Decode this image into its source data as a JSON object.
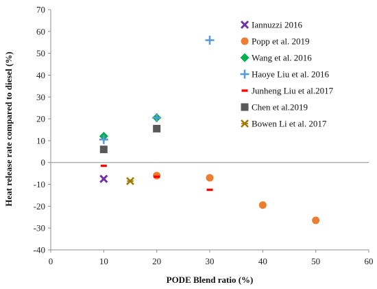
{
  "chart_data": {
    "type": "scatter",
    "title": "",
    "xlabel": "PODE Blend ratio (%)",
    "ylabel": "Heat release rate compared to diesel (%)",
    "xlim": [
      0,
      60
    ],
    "ylim": [
      -40,
      70
    ],
    "xticks": [
      0,
      10,
      20,
      30,
      40,
      50,
      60
    ],
    "yticks": [
      -40,
      -30,
      -20,
      -10,
      0,
      10,
      20,
      30,
      40,
      50,
      60,
      70
    ],
    "grid": false,
    "legend_position": "top-right",
    "series": [
      {
        "name": "Iannuzzi 2016",
        "marker": "x",
        "color": "#7030a0",
        "points": [
          {
            "x": 10,
            "y": -7.5
          }
        ]
      },
      {
        "name": "Popp et al. 2019",
        "marker": "circle",
        "color": "#ed7d31",
        "points": [
          {
            "x": 20,
            "y": -6
          },
          {
            "x": 30,
            "y": -7
          },
          {
            "x": 40,
            "y": -19.5
          },
          {
            "x": 50,
            "y": -26.5
          }
        ]
      },
      {
        "name": "Wang et al. 2016",
        "marker": "diamond",
        "color": "#00b050",
        "points": [
          {
            "x": 10,
            "y": 12
          },
          {
            "x": 20,
            "y": 20.5
          }
        ]
      },
      {
        "name": "Haoye Liu et al. 2016",
        "marker": "plus",
        "color": "#5b9bd5",
        "points": [
          {
            "x": 10,
            "y": 10.5
          },
          {
            "x": 20,
            "y": 20.5
          },
          {
            "x": 30,
            "y": 56
          }
        ]
      },
      {
        "name": "Junheng Liu et al.2017",
        "marker": "dash",
        "color": "#ff0000",
        "points": [
          {
            "x": 10,
            "y": -1.5
          },
          {
            "x": 20,
            "y": -6.5
          },
          {
            "x": 30,
            "y": -12.5
          }
        ]
      },
      {
        "name": "Chen et al.2019",
        "marker": "square",
        "color": "#595959",
        "points": [
          {
            "x": 10,
            "y": 6
          },
          {
            "x": 20,
            "y": 15.5
          }
        ]
      },
      {
        "name": "Bowen Li et al. 2017",
        "marker": "star-x",
        "color": "#9c7c00",
        "points": [
          {
            "x": 15,
            "y": -8.5
          }
        ]
      }
    ]
  }
}
